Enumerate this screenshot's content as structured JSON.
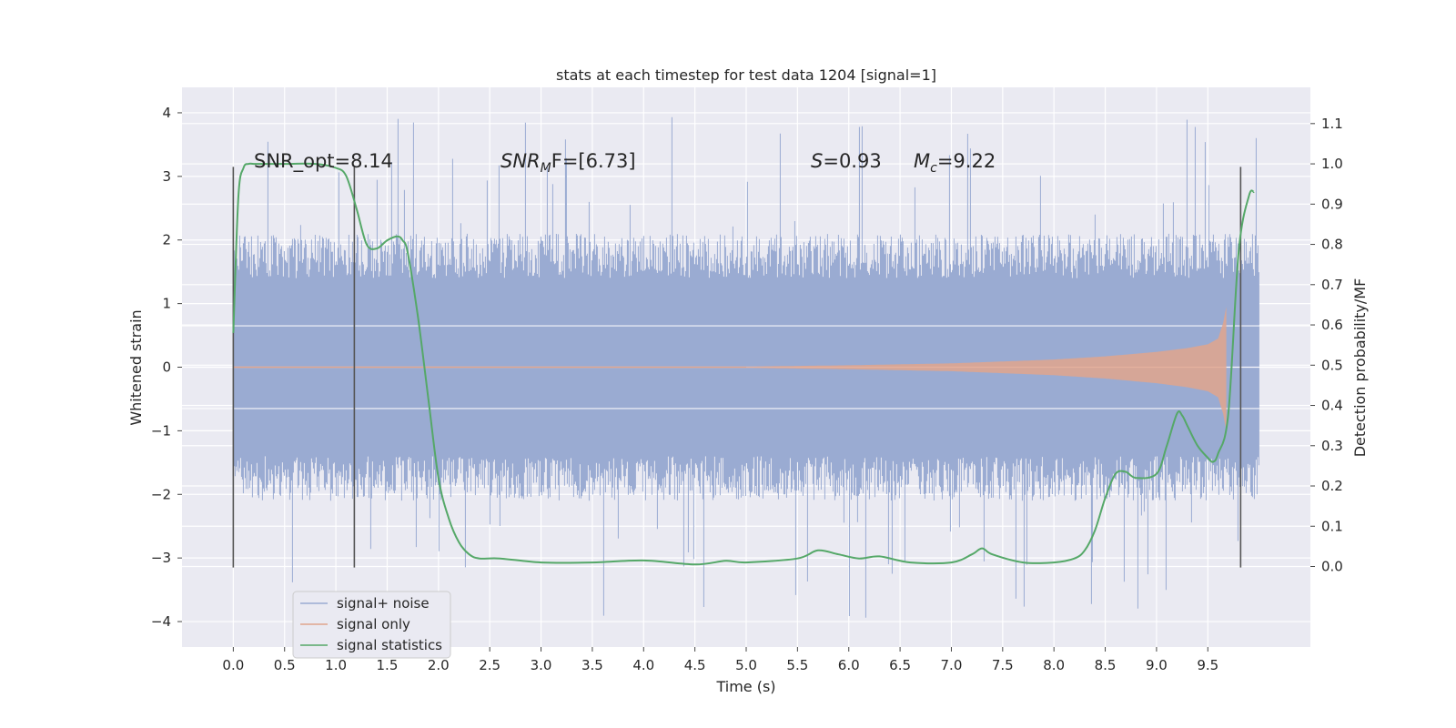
{
  "chart_data": {
    "type": "line",
    "title": "stats at each timestep for test data 1204 [signal=1]",
    "xlabel": "Time (s)",
    "ylabel": "Whitened strain",
    "ylabel_right": "Detection probability/MF",
    "xlim": [
      -0.5,
      10.5
    ],
    "ylim": [
      -4.4,
      4.4
    ],
    "ylim_right": [
      -0.2,
      1.19
    ],
    "x_ticks": [
      "0.0",
      "0.5",
      "1.0",
      "1.5",
      "2.0",
      "2.5",
      "3.0",
      "3.5",
      "4.0",
      "4.5",
      "5.0",
      "5.5",
      "6.0",
      "6.5",
      "7.0",
      "7.5",
      "8.0",
      "8.5",
      "9.0",
      "9.5"
    ],
    "y_ticks": [
      "4",
      "3",
      "2",
      "1",
      "0",
      "−1",
      "−2",
      "−3",
      "−4"
    ],
    "y_right_ticks": [
      "1.1",
      "1.0",
      "0.9",
      "0.8",
      "0.7",
      "0.6",
      "0.5",
      "0.4",
      "0.3",
      "0.2",
      "0.1",
      "0.0"
    ],
    "grid": true,
    "legend_position": "lower-left",
    "annotations": {
      "snr_opt": "SNR_opt=8.14",
      "snr_mf_base": "SNR",
      "snr_mf_sub": "M",
      "snr_mf_rest": "F=[6.73]",
      "s_var": "S",
      "s_val": "=0.93",
      "mc_var": "M",
      "mc_sub": "c",
      "mc_val": "=9.22"
    },
    "event_markers_x": [
      0.0,
      1.18,
      9.82
    ],
    "series": [
      {
        "name": "signal+ noise",
        "color": "#9aabd2",
        "band_envelope": {
          "x": [
            0,
            10
          ],
          "inner": 1.3,
          "outer": 2.0,
          "spike_max": 4.05,
          "spike_min": -4.05
        }
      },
      {
        "name": "signal only",
        "color": "#e0a58d",
        "chirp_envelope": {
          "x": [
            5.0,
            6.0,
            7.0,
            8.0,
            8.5,
            9.0,
            9.3,
            9.5,
            9.6,
            9.65,
            9.68
          ],
          "amplitude": [
            0.01,
            0.03,
            0.06,
            0.12,
            0.17,
            0.24,
            0.3,
            0.36,
            0.45,
            0.7,
            0.95
          ]
        }
      },
      {
        "name": "signal statistics",
        "color": "#55a868",
        "axis": "right",
        "x": [
          0.0,
          0.05,
          0.1,
          0.15,
          0.2,
          0.3,
          0.5,
          0.8,
          1.0,
          1.1,
          1.2,
          1.3,
          1.4,
          1.5,
          1.6,
          1.65,
          1.7,
          1.8,
          1.9,
          2.0,
          2.1,
          2.2,
          2.3,
          2.4,
          2.6,
          3.0,
          3.5,
          4.0,
          4.5,
          4.8,
          5.0,
          5.5,
          5.7,
          5.9,
          6.1,
          6.3,
          6.6,
          7.0,
          7.2,
          7.3,
          7.4,
          7.7,
          8.0,
          8.2,
          8.3,
          8.4,
          8.5,
          8.6,
          8.7,
          8.8,
          9.0,
          9.1,
          9.2,
          9.25,
          9.3,
          9.4,
          9.5,
          9.55,
          9.6,
          9.7,
          9.8,
          9.9,
          9.95
        ],
        "values": [
          0.58,
          0.92,
          0.99,
          1.0,
          1.0,
          1.0,
          1.0,
          1.0,
          0.99,
          0.97,
          0.89,
          0.8,
          0.79,
          0.81,
          0.82,
          0.81,
          0.78,
          0.62,
          0.42,
          0.22,
          0.12,
          0.06,
          0.03,
          0.02,
          0.02,
          0.01,
          0.01,
          0.015,
          0.005,
          0.014,
          0.01,
          0.02,
          0.04,
          0.03,
          0.02,
          0.025,
          0.01,
          0.01,
          0.03,
          0.045,
          0.03,
          0.01,
          0.01,
          0.02,
          0.04,
          0.09,
          0.17,
          0.23,
          0.235,
          0.22,
          0.23,
          0.3,
          0.38,
          0.375,
          0.35,
          0.3,
          0.27,
          0.26,
          0.28,
          0.38,
          0.78,
          0.92,
          0.93
        ]
      }
    ]
  }
}
